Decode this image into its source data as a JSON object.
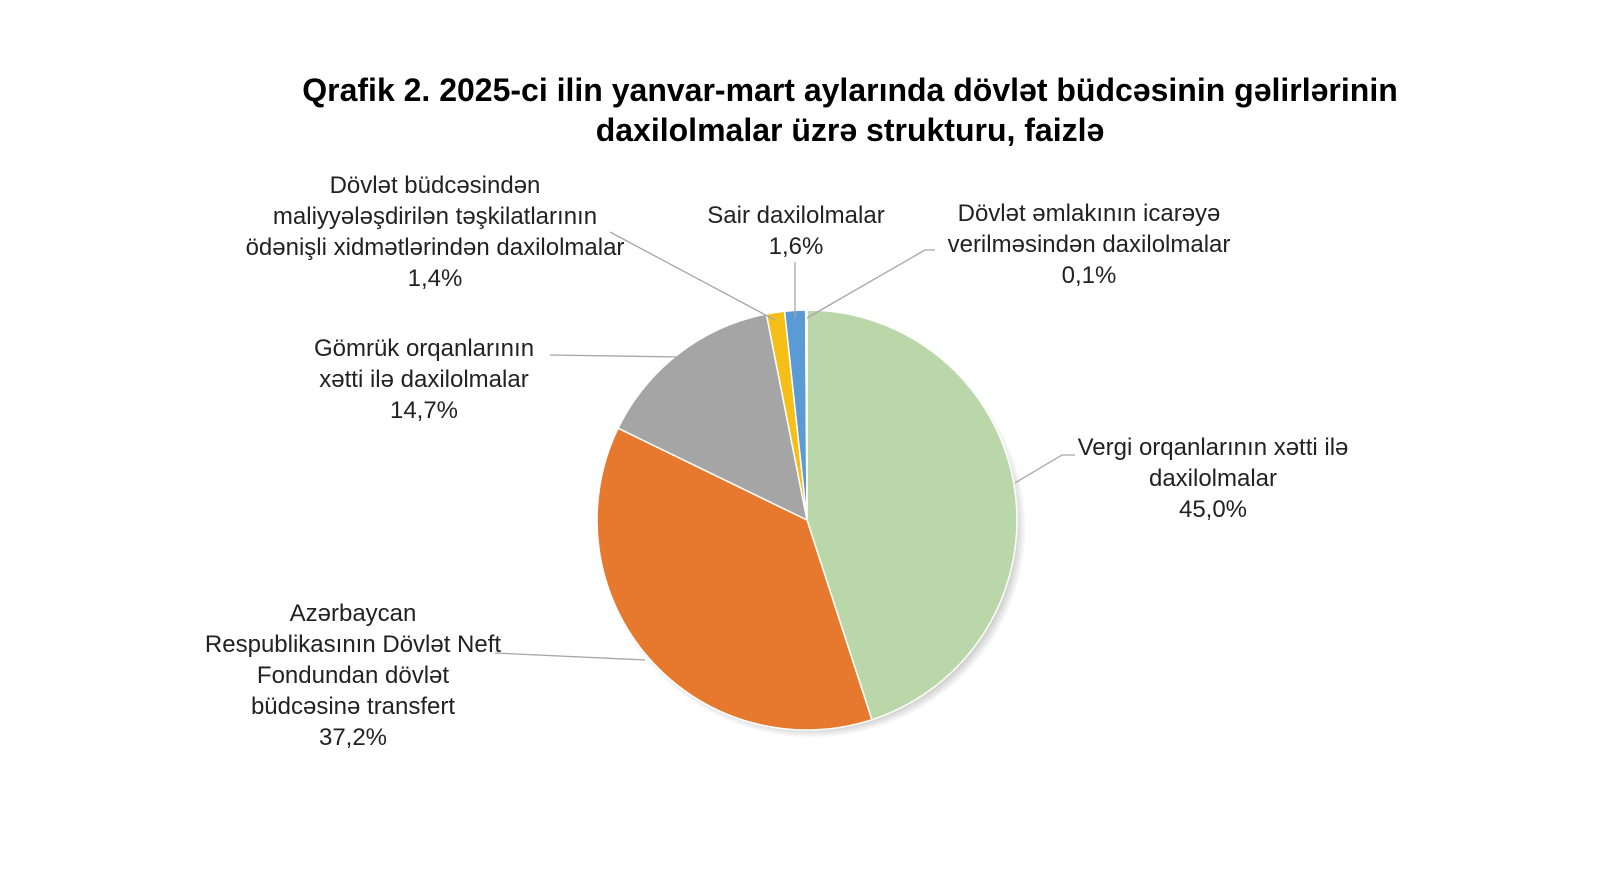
{
  "chart_data": {
    "type": "pie",
    "title": "Qrafik 2. 2025-ci ilin yanvar-mart aylarında dövlət büdcəsinin gəlirlərinin daxilolmalar üzrə strukturu, faizlə",
    "categories": [
      "Vergi orqanlarının xətti ilə daxilolmalar",
      "Azərbaycan Respublikasının Dövlət Neft Fondundan dövlət büdcəsinə transfert",
      "Gömrük orqanlarının xətti ilə daxilolmalar",
      "Dövlət büdcəsindən maliyyələşdirilən təşkilatlarının ödənişli xidmətlərindən daxilolmalar",
      "Sair daxilolmalar",
      "Dövlət əmlakının icarəyə verilməsindən daxilolmalar"
    ],
    "values": [
      45.0,
      37.2,
      14.7,
      1.4,
      1.6,
      0.1
    ],
    "value_labels": [
      "45,0%",
      "37,2%",
      "14,7%",
      "1,4%",
      "1,6%",
      "0,1%"
    ],
    "colors": [
      "#b9d7a8",
      "#e6792e",
      "#a5a5a5",
      "#f5bf18",
      "#5b9bd5",
      "#264478"
    ]
  }
}
